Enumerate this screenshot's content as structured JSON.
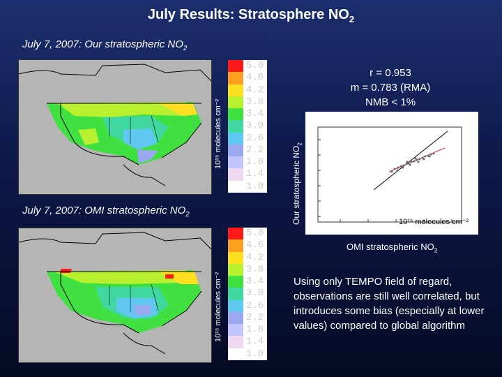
{
  "slide": {
    "title_main": "July Results: Stratosphere NO",
    "title_sub": "2"
  },
  "panel_top": {
    "caption_main": "July 7, 2007: Our stratospheric NO",
    "caption_sub": "2",
    "colorbar_label": "10¹⁵ molecules cm⁻²"
  },
  "panel_bottom": {
    "caption_main": "July 7, 2007: OMI stratospheric NO",
    "caption_sub": "2",
    "colorbar_label": "10¹⁵ molecules cm⁻²"
  },
  "colorbar": {
    "ticks": [
      "5.0",
      "4.6",
      "4.2",
      "3.8",
      "3.4",
      "3.0",
      "2.6",
      "2.2",
      "1.8",
      "1.4",
      "1.0"
    ],
    "colors": [
      "#ff1a1a",
      "#ffa020",
      "#ffe020",
      "#b8f030",
      "#40e040",
      "#40d8a0",
      "#60c8f0",
      "#9aa8f0",
      "#c4c4ff",
      "#f0d8f0",
      "#ffffff"
    ]
  },
  "stats": {
    "r": "r = 0.953",
    "m": "m = 0.783 (RMA)",
    "nmb": "NMB < 1%"
  },
  "scatter": {
    "ylabel_main": "Our stratospheric NO",
    "ylabel_sub": "2",
    "xlabel_main": "OMI stratospheric NO",
    "xlabel_sub": "2",
    "units": "10¹⁵ molecules cm⁻²"
  },
  "description": "Using only TEMPO field of regard, observations are still well correlated, but introduces some bias (especially at lower values) compared to global algorithm",
  "colors": {
    "background_top": "#1c2f6e",
    "background_bottom": "#050a24",
    "map_gray": "#b5b5b5"
  }
}
